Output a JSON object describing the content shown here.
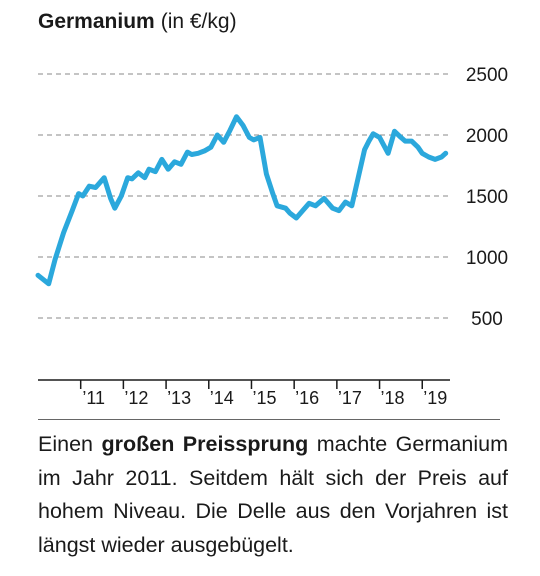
{
  "chart_data": {
    "type": "line",
    "title": "Germanium",
    "unit": "(in €/kg)",
    "xlabel": "",
    "ylabel": "",
    "x_range": [
      2010.0,
      2019.65
    ],
    "ylim": [
      0,
      2500
    ],
    "yticks": [
      "2500",
      "2000",
      "1500",
      "1000",
      "500"
    ],
    "ytick_values": [
      2500,
      2000,
      1500,
      1000,
      500
    ],
    "grid": true,
    "legend": "none",
    "color": "#2ba8dc",
    "xticks": [
      "’11",
      "’12",
      "’13",
      "’14",
      "’15",
      "’16",
      "’17",
      "’18",
      "’19"
    ],
    "xtick_values": [
      2011,
      2012,
      2013,
      2014,
      2015,
      2016,
      2017,
      2018,
      2019
    ],
    "series": [
      {
        "x": [
          2010.0,
          2010.25,
          2010.4,
          2010.6,
          2010.8,
          2010.95,
          2011.05,
          2011.2,
          2011.35,
          2011.55,
          2011.7,
          2011.8,
          2011.95,
          2012.1,
          2012.2,
          2012.35,
          2012.5,
          2012.6,
          2012.75,
          2012.9,
          2013.05,
          2013.2,
          2013.35,
          2013.5,
          2013.6,
          2013.75,
          2013.9,
          2014.05,
          2014.2,
          2014.35,
          2014.5,
          2014.65,
          2014.8,
          2014.95,
          2015.05,
          2015.2,
          2015.35,
          2015.5,
          2015.6,
          2015.8,
          2015.9,
          2016.05,
          2016.2,
          2016.35,
          2016.5,
          2016.7,
          2016.9,
          2017.05,
          2017.2,
          2017.35,
          2017.5,
          2017.65,
          2017.75,
          2017.85,
          2018.0,
          2018.2,
          2018.35,
          2018.5,
          2018.6,
          2018.75,
          2018.9,
          2019.0,
          2019.15,
          2019.3,
          2019.45,
          2019.55
        ],
        "y": [
          850,
          780,
          980,
          1200,
          1380,
          1520,
          1500,
          1580,
          1570,
          1650,
          1480,
          1400,
          1500,
          1650,
          1640,
          1690,
          1650,
          1720,
          1700,
          1800,
          1720,
          1780,
          1760,
          1860,
          1840,
          1850,
          1870,
          1900,
          2000,
          1940,
          2040,
          2150,
          2080,
          1980,
          1960,
          1980,
          1680,
          1520,
          1420,
          1400,
          1360,
          1320,
          1380,
          1440,
          1420,
          1480,
          1400,
          1380,
          1450,
          1420,
          1650,
          1880,
          1950,
          2010,
          1980,
          1850,
          2030,
          1980,
          1950,
          1950,
          1900,
          1850,
          1820,
          1800,
          1820,
          1850
        ]
      }
    ]
  },
  "caption": {
    "pre": "Einen ",
    "bold": "großen Preissprung",
    "post": " machte Germanium im Jahr 2011. Seitdem hält sich der Preis auf hohem Niveau. Die Delle aus den Vorjahren ist längst wieder ausgebügelt."
  }
}
